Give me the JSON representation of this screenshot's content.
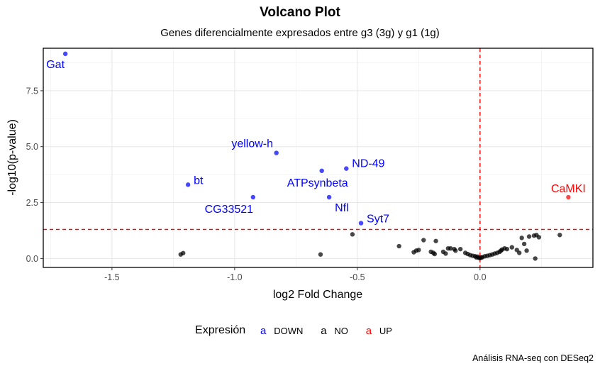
{
  "chart_data": {
    "type": "scatter",
    "title": "Volcano Plot",
    "subtitle": "Genes diferencialmente expresados entre g3 (3g) y g1 (1g)",
    "xlabel": "log2 Fold Change",
    "ylabel": "-log10(p-value)",
    "caption": "Análisis RNA-seq con DESeq2",
    "xlim": [
      -1.78,
      0.46
    ],
    "ylim": [
      -0.4,
      9.4
    ],
    "x_ticks": [
      -1.5,
      -1.0,
      -0.5,
      0.0
    ],
    "x_tick_labels": [
      "-1.5",
      "-1.0",
      "-0.5",
      "0.0"
    ],
    "y_ticks": [
      0,
      2.5,
      5,
      7.5
    ],
    "y_tick_labels": [
      "0.0",
      "2.5",
      "5.0",
      "7.5"
    ],
    "grid": true,
    "threshold_lines": {
      "x": 0.0,
      "y": 1.3,
      "color": "#ff0000",
      "style": "dashed"
    },
    "colors": {
      "DOWN": "#0000ff",
      "NO": "#000000",
      "UP": "#ff0000"
    },
    "legend": {
      "title": "Expresión",
      "position": "bottom",
      "key_glyph": "a",
      "entries": [
        {
          "key": "DOWN",
          "label": "DOWN",
          "color": "#0000ff"
        },
        {
          "key": "NO",
          "label": "NO",
          "color": "#000000"
        },
        {
          "key": "UP",
          "label": "UP",
          "color": "#ff0000"
        }
      ]
    },
    "series": [
      {
        "name": "DOWN",
        "points": [
          {
            "x": -1.69,
            "y": 9.15,
            "label": "Gat"
          },
          {
            "x": -0.83,
            "y": 4.72,
            "label": "yellow-h"
          },
          {
            "x": -0.545,
            "y": 4.02,
            "label": "ND-49"
          },
          {
            "x": -0.645,
            "y": 3.92,
            "label": "ATPsynbeta"
          },
          {
            "x": -1.19,
            "y": 3.3,
            "label": "bt"
          },
          {
            "x": -0.925,
            "y": 2.74,
            "label": "CG33521"
          },
          {
            "x": -0.615,
            "y": 2.74,
            "label": "Nfl"
          },
          {
            "x": -0.485,
            "y": 1.58,
            "label": "Syt7"
          }
        ]
      },
      {
        "name": "UP",
        "points": [
          {
            "x": 0.36,
            "y": 2.74,
            "label": "CaMKI"
          }
        ]
      },
      {
        "name": "NO",
        "points": [
          {
            "x": -1.22,
            "y": 0.18
          },
          {
            "x": -1.21,
            "y": 0.24
          },
          {
            "x": -0.65,
            "y": 0.18
          },
          {
            "x": -0.52,
            "y": 1.08
          },
          {
            "x": -0.33,
            "y": 0.55
          },
          {
            "x": -0.27,
            "y": 0.28
          },
          {
            "x": -0.26,
            "y": 0.35
          },
          {
            "x": -0.25,
            "y": 0.38
          },
          {
            "x": -0.23,
            "y": 0.82
          },
          {
            "x": -0.2,
            "y": 0.3
          },
          {
            "x": -0.19,
            "y": 0.25
          },
          {
            "x": -0.185,
            "y": 0.2
          },
          {
            "x": -0.18,
            "y": 0.78
          },
          {
            "x": -0.15,
            "y": 0.3
          },
          {
            "x": -0.14,
            "y": 0.22
          },
          {
            "x": -0.13,
            "y": 0.45
          },
          {
            "x": -0.12,
            "y": 0.45
          },
          {
            "x": -0.105,
            "y": 0.42
          },
          {
            "x": -0.1,
            "y": 0.35
          },
          {
            "x": -0.08,
            "y": 0.42
          },
          {
            "x": -0.06,
            "y": 0.25
          },
          {
            "x": -0.05,
            "y": 0.2
          },
          {
            "x": -0.04,
            "y": 0.15
          },
          {
            "x": -0.03,
            "y": 0.12
          },
          {
            "x": -0.02,
            "y": 0.1
          },
          {
            "x": -0.015,
            "y": 0.05
          },
          {
            "x": -0.01,
            "y": 0.08
          },
          {
            "x": -0.005,
            "y": 0.03
          },
          {
            "x": 0.0,
            "y": 0.02
          },
          {
            "x": 0.005,
            "y": 0.04
          },
          {
            "x": 0.01,
            "y": 0.06
          },
          {
            "x": 0.02,
            "y": 0.1
          },
          {
            "x": 0.03,
            "y": 0.12
          },
          {
            "x": 0.04,
            "y": 0.15
          },
          {
            "x": 0.05,
            "y": 0.18
          },
          {
            "x": 0.06,
            "y": 0.22
          },
          {
            "x": 0.07,
            "y": 0.25
          },
          {
            "x": 0.08,
            "y": 0.3
          },
          {
            "x": 0.085,
            "y": 0.35
          },
          {
            "x": 0.09,
            "y": 0.4
          },
          {
            "x": 0.1,
            "y": 0.45
          },
          {
            "x": 0.11,
            "y": 0.42
          },
          {
            "x": 0.13,
            "y": 0.5
          },
          {
            "x": 0.15,
            "y": 0.38
          },
          {
            "x": 0.16,
            "y": 0.25
          },
          {
            "x": 0.17,
            "y": 0.92
          },
          {
            "x": 0.18,
            "y": 0.65
          },
          {
            "x": 0.19,
            "y": 0.35
          },
          {
            "x": 0.2,
            "y": 0.98
          },
          {
            "x": 0.22,
            "y": 1.02
          },
          {
            "x": 0.225,
            "y": 0.0
          },
          {
            "x": 0.23,
            "y": 1.05
          },
          {
            "x": 0.24,
            "y": 0.95
          },
          {
            "x": 0.325,
            "y": 1.05
          }
        ]
      }
    ]
  }
}
